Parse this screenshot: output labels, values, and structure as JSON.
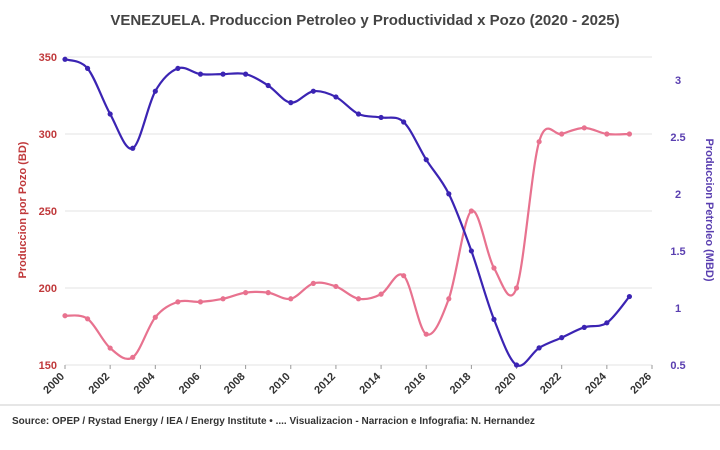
{
  "chart_data": {
    "type": "line",
    "title": "VENEZUELA. Produccion Petroleo y Productividad x Pozo (2020 - 2025)",
    "source": "Source: OPEP / Rystad Energy / IEA / Energy Institute • .... Visualizacion - Narracion e Infografia: N. Hernandez",
    "x_ticks": [
      "2000",
      "2002",
      "2004",
      "2006",
      "2008",
      "2010",
      "2012",
      "2014",
      "2016",
      "2018",
      "2020",
      "2022",
      "2024",
      "2026"
    ],
    "xlim": [
      2000,
      2026
    ],
    "y_left": {
      "label": "Produccion por Pozo (BD)",
      "ticks": [
        "150",
        "200",
        "250",
        "300",
        "350"
      ],
      "ylim": [
        150,
        350
      ],
      "color": "#c0393b"
    },
    "y_right": {
      "label": "Produccion Petroleo (MBD)",
      "ticks": [
        "0.5",
        "1",
        "1.5",
        "2",
        "2.5",
        "3"
      ],
      "ylim": [
        0.5,
        3.2
      ],
      "color": "#5a3fb0"
    },
    "series": [
      {
        "name": "Produccion por Pozo (BD)",
        "axis": "left",
        "color": "#e8728f",
        "x": [
          2000,
          2001,
          2002,
          2003,
          2004,
          2005,
          2006,
          2007,
          2008,
          2009,
          2010,
          2011,
          2012,
          2013,
          2014,
          2015,
          2016,
          2017,
          2018,
          2019,
          2020,
          2021,
          2022,
          2023,
          2024,
          2025
        ],
        "values": [
          182,
          180,
          161,
          155,
          181,
          191,
          191,
          193,
          197,
          197,
          193,
          203,
          201,
          193,
          196,
          208,
          170,
          193,
          250,
          213,
          200,
          295,
          300,
          304,
          300,
          300
        ]
      },
      {
        "name": "Produccion Petroleo (MBD)",
        "axis": "right",
        "color": "#3b24b3",
        "x": [
          2000,
          2001,
          2002,
          2003,
          2004,
          2005,
          2006,
          2007,
          2008,
          2009,
          2010,
          2011,
          2012,
          2013,
          2014,
          2015,
          2016,
          2017,
          2018,
          2019,
          2020,
          2021,
          2022,
          2023,
          2024,
          2025
        ],
        "values": [
          3.18,
          3.1,
          2.7,
          2.4,
          2.9,
          3.1,
          3.05,
          3.05,
          3.05,
          2.95,
          2.8,
          2.9,
          2.85,
          2.7,
          2.67,
          2.63,
          2.3,
          2.0,
          1.5,
          0.9,
          0.5,
          0.65,
          0.74,
          0.83,
          0.87,
          1.1
        ]
      }
    ]
  }
}
